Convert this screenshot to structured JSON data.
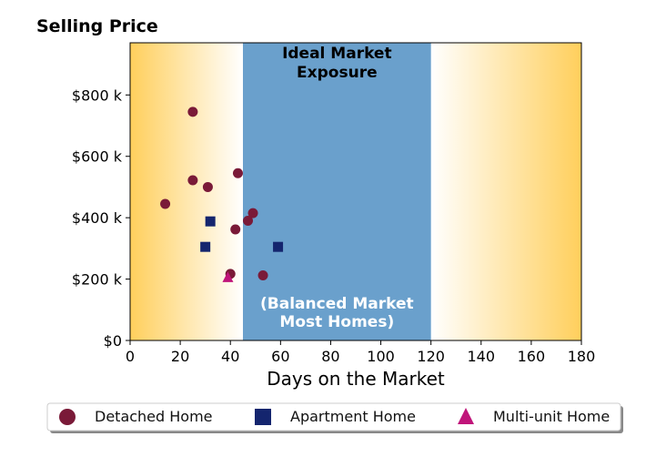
{
  "chart_data": {
    "type": "scatter",
    "title": "Selling Price",
    "xlabel": "Days on the Market",
    "ylabel": "",
    "xlim": [
      0,
      180
    ],
    "ylim": [
      0,
      970000
    ],
    "x_ticks": [
      0,
      20,
      40,
      60,
      80,
      100,
      120,
      140,
      160,
      180
    ],
    "x_tick_labels": [
      "0",
      "20",
      "40",
      "60",
      "80",
      "100",
      "120",
      "140",
      "160",
      "180"
    ],
    "y_ticks": [
      0,
      200000,
      400000,
      600000,
      800000
    ],
    "y_tick_labels": [
      "$0",
      "$200 k",
      "$400 k",
      "$600 k",
      "$800 k"
    ],
    "grid": false,
    "legend_position": "bottom",
    "band": {
      "x_range": [
        45,
        120
      ],
      "color": "#6aa0cc",
      "title_lines": [
        "Ideal Market",
        "Exposure"
      ],
      "note_lines": [
        "(Balanced Market",
        "Most Homes)"
      ]
    },
    "background_gradient": {
      "edge_color": "#ffcf5c",
      "center_color": "#ffffff"
    },
    "series": [
      {
        "name": "Detached Home",
        "marker": "circle",
        "color": "#7a1a38",
        "points": [
          {
            "x": 25,
            "y": 745000
          },
          {
            "x": 43,
            "y": 545000
          },
          {
            "x": 25,
            "y": 522000
          },
          {
            "x": 31,
            "y": 500000
          },
          {
            "x": 14,
            "y": 445000
          },
          {
            "x": 49,
            "y": 415000
          },
          {
            "x": 47,
            "y": 390000
          },
          {
            "x": 42,
            "y": 362000
          },
          {
            "x": 40,
            "y": 217000
          },
          {
            "x": 53,
            "y": 212000
          }
        ]
      },
      {
        "name": "Apartment Home",
        "marker": "square",
        "color": "#14256e",
        "points": [
          {
            "x": 32,
            "y": 388000
          },
          {
            "x": 30,
            "y": 305000
          },
          {
            "x": 59,
            "y": 305000
          }
        ]
      },
      {
        "name": "Multi-unit Home",
        "marker": "triangle",
        "color": "#c0157a",
        "points": [
          {
            "x": 39,
            "y": 205000
          }
        ]
      }
    ]
  }
}
